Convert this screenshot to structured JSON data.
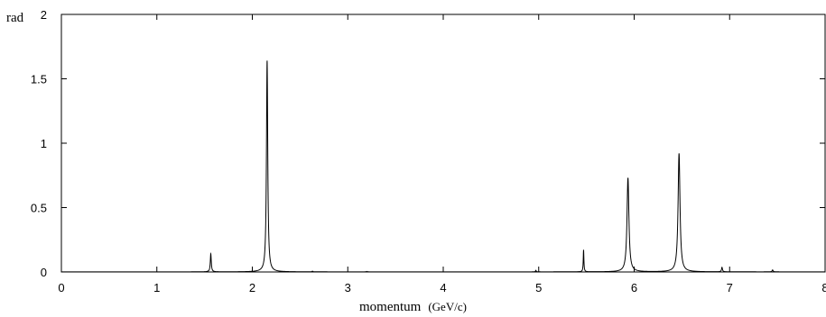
{
  "chart_data": {
    "type": "line",
    "title": "",
    "xlabel": "momentum (GeV/c)",
    "ylabel": "rad",
    "xlim": [
      0,
      8
    ],
    "ylim": [
      0,
      2
    ],
    "x_ticks": [
      0,
      1,
      2,
      3,
      4,
      5,
      6,
      7,
      8
    ],
    "x_tick_labels": [
      "0",
      "1",
      "2",
      "3",
      "4",
      "5",
      "6",
      "7",
      "8"
    ],
    "y_ticks": [
      0,
      0.5,
      1,
      1.5,
      2
    ],
    "y_tick_labels": [
      "0",
      "0.5",
      "1",
      "1.5",
      "2"
    ],
    "grid": false,
    "legend": "none",
    "line_color": "#000000",
    "series": [
      {
        "peaks": [
          {
            "x": 1.565,
            "height": 0.14,
            "width": 0.006
          },
          {
            "x": 2.155,
            "height": 1.64,
            "width": 0.008
          },
          {
            "x": 2.63,
            "height": 0.005,
            "width": 0.005
          },
          {
            "x": 3.2,
            "height": 0.003,
            "width": 0.005
          },
          {
            "x": 4.97,
            "height": 0.012,
            "width": 0.004
          },
          {
            "x": 5.47,
            "height": 0.17,
            "width": 0.004
          },
          {
            "x": 5.935,
            "height": 0.73,
            "width": 0.012
          },
          {
            "x": 6.47,
            "height": 0.92,
            "width": 0.012
          },
          {
            "x": 6.92,
            "height": 0.035,
            "width": 0.006
          },
          {
            "x": 7.45,
            "height": 0.015,
            "width": 0.006
          }
        ]
      }
    ]
  }
}
